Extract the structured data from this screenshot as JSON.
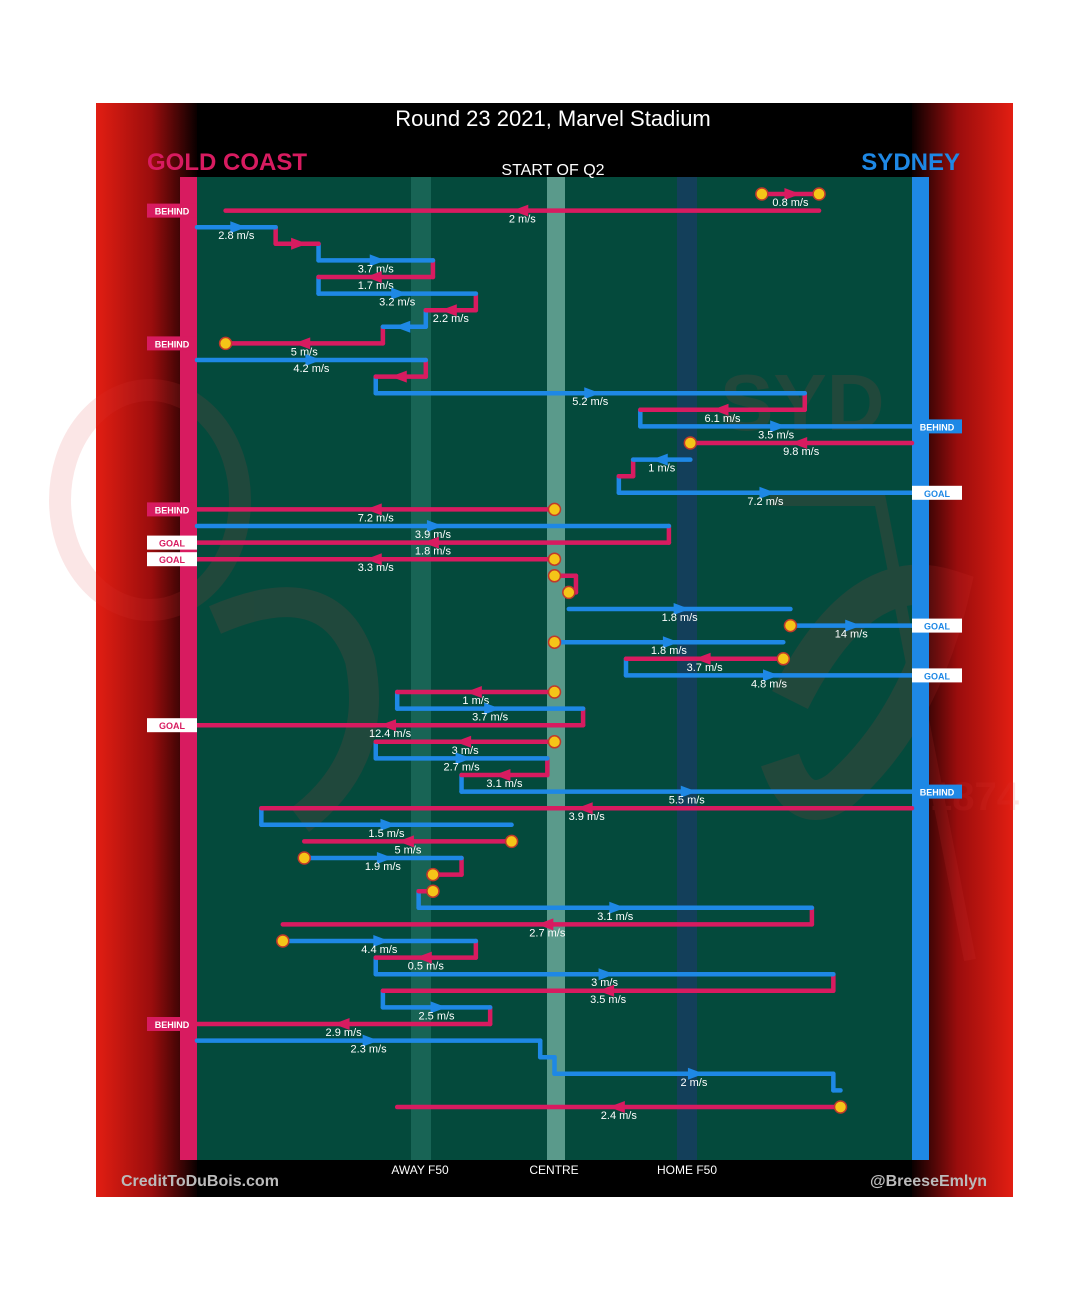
{
  "header": {
    "title": "Round 23 2021, Marvel Stadium",
    "home_team": "GOLD COAST",
    "away_team": "SYDNEY",
    "period": "START OF Q2"
  },
  "footer": {
    "credit_left": "CreditToDuBois.com",
    "credit_right": "@BreeseEmlyn"
  },
  "colors": {
    "gold_coast": "#d81b60",
    "sydney": "#1e88e5",
    "field": "#044a3c",
    "header_bg": "#000000",
    "side_red": "#e01a1a",
    "ball": "#f5c518"
  },
  "axis": {
    "labels": [
      "AWAY F50",
      "CENTRE",
      "HOME F50"
    ],
    "label_positions": [
      0.32,
      0.5,
      0.68
    ]
  },
  "icons": {
    "watermark": "sydney-swans-logo",
    "ball": "ball-marker-icon",
    "arrow": "arrow-head-icon"
  },
  "chart_data": {
    "type": "line",
    "title": "Round 23 2021, Marvel Stadium",
    "subtitle": "START OF Q2",
    "x_range": [
      0,
      1
    ],
    "xlabel": "",
    "ylabel": "",
    "series": [
      {
        "name": "GOLD COAST",
        "note": "possession chains drawn in pink"
      },
      {
        "name": "SYDNEY",
        "note": "possession chains drawn in blue"
      }
    ],
    "chains": [
      {
        "team": "GC",
        "x0": 0.79,
        "x1": 0.87,
        "speed": "0.8 m/s",
        "start": "ball",
        "end": "ball"
      },
      {
        "team": "GC",
        "x0": 0.87,
        "x1": 0.04,
        "speed": "2 m/s",
        "end": "BEHIND"
      },
      {
        "team": "SY",
        "x0": 0.0,
        "x1": 0.11,
        "speed": "2.8 m/s"
      },
      {
        "team": "GC",
        "x0": 0.11,
        "x1": 0.17,
        "speed": ""
      },
      {
        "team": "SY",
        "x0": 0.17,
        "x1": 0.33,
        "speed": "3.7 m/s"
      },
      {
        "team": "GC",
        "x0": 0.33,
        "x1": 0.17,
        "speed": "1.7 m/s"
      },
      {
        "team": "SY",
        "x0": 0.17,
        "x1": 0.39,
        "speed": "3.2 m/s"
      },
      {
        "team": "GC",
        "x0": 0.39,
        "x1": 0.32,
        "speed": "2.2 m/s"
      },
      {
        "team": "SY",
        "x0": 0.32,
        "x1": 0.26,
        "speed": ""
      },
      {
        "team": "GC",
        "x0": 0.26,
        "x1": 0.04,
        "speed": "5 m/s",
        "end": "ball",
        "result": "BEHIND"
      },
      {
        "team": "SY",
        "x0": 0.0,
        "x1": 0.32,
        "speed": "4.2 m/s"
      },
      {
        "team": "GC",
        "x0": 0.32,
        "x1": 0.25,
        "speed": ""
      },
      {
        "team": "SY",
        "x0": 0.25,
        "x1": 0.85,
        "speed": "5.2 m/s"
      },
      {
        "team": "GC",
        "x0": 0.85,
        "x1": 0.62,
        "speed": "6.1 m/s"
      },
      {
        "team": "SY",
        "x0": 0.62,
        "x1": 1.0,
        "speed": "3.5 m/s",
        "end": "BEHIND"
      },
      {
        "team": "GC",
        "x0": 1.0,
        "x1": 0.69,
        "speed": "9.8 m/s",
        "end": "ball"
      },
      {
        "team": "SY",
        "x0": 0.69,
        "x1": 0.61,
        "speed": "1 m/s"
      },
      {
        "team": "GC",
        "x0": 0.61,
        "x1": 0.59,
        "speed": ""
      },
      {
        "team": "SY",
        "x0": 0.59,
        "x1": 1.0,
        "speed": "7.2 m/s",
        "end": "GOAL"
      },
      {
        "team": "GC",
        "x0": 0.5,
        "x1": 0.0,
        "speed": "7.2 m/s",
        "start": "ball",
        "end": "BEHIND"
      },
      {
        "team": "SY",
        "x0": 0.0,
        "x1": 0.66,
        "speed": "3.9 m/s"
      },
      {
        "team": "GC",
        "x0": 0.66,
        "x1": 0.0,
        "speed": "1.8 m/s",
        "end": "GOAL"
      },
      {
        "team": "GC",
        "x0": 0.5,
        "x1": 0.0,
        "speed": "3.3 m/s",
        "start": "ball",
        "end": "GOAL"
      },
      {
        "team": "GC",
        "x0": 0.5,
        "x1": 0.53,
        "speed": "",
        "start": "ball"
      },
      {
        "team": "GC",
        "x0": 0.53,
        "x1": 0.52,
        "speed": "",
        "end": "ball"
      },
      {
        "team": "SY",
        "x0": 0.52,
        "x1": 0.83,
        "speed": "1.8 m/s"
      },
      {
        "team": "SY",
        "x0": 0.83,
        "x1": 1.0,
        "speed": "14 m/s",
        "start": "ball",
        "end": "GOAL"
      },
      {
        "team": "SY",
        "x0": 0.5,
        "x1": 0.82,
        "speed": "1.8 m/s",
        "start": "ball"
      },
      {
        "team": "GC",
        "x0": 0.82,
        "x1": 0.6,
        "speed": "3.7 m/s",
        "start": "ball"
      },
      {
        "team": "SY",
        "x0": 0.6,
        "x1": 1.0,
        "speed": "4.8 m/s",
        "end": "GOAL"
      },
      {
        "team": "GC",
        "x0": 0.5,
        "x1": 0.28,
        "speed": "1 m/s",
        "start": "ball"
      },
      {
        "team": "SY",
        "x0": 0.28,
        "x1": 0.54,
        "speed": "3.7 m/s"
      },
      {
        "team": "GC",
        "x0": 0.54,
        "x1": 0.0,
        "speed": "12.4 m/s",
        "end": "GOAL"
      },
      {
        "team": "GC",
        "x0": 0.5,
        "x1": 0.25,
        "speed": "3 m/s",
        "start": "ball"
      },
      {
        "team": "SY",
        "x0": 0.25,
        "x1": 0.49,
        "speed": "2.7 m/s"
      },
      {
        "team": "GC",
        "x0": 0.49,
        "x1": 0.37,
        "speed": "3.1 m/s"
      },
      {
        "team": "SY",
        "x0": 0.37,
        "x1": 1.0,
        "speed": "5.5 m/s",
        "end": "BEHIND"
      },
      {
        "team": "GC",
        "x0": 1.0,
        "x1": 0.09,
        "speed": "3.9 m/s"
      },
      {
        "team": "SY",
        "x0": 0.09,
        "x1": 0.44,
        "speed": "1.5 m/s"
      },
      {
        "team": "GC",
        "x0": 0.44,
        "x1": 0.15,
        "speed": "5 m/s",
        "start": "ball"
      },
      {
        "team": "SY",
        "x0": 0.15,
        "x1": 0.37,
        "speed": "1.9 m/s",
        "start": "ball"
      },
      {
        "team": "GC",
        "x0": 0.37,
        "x1": 0.33,
        "speed": "",
        "end": "ball"
      },
      {
        "team": "GC",
        "x0": 0.33,
        "x1": 0.31,
        "speed": "",
        "start": "ball"
      },
      {
        "team": "SY",
        "x0": 0.31,
        "x1": 0.86,
        "speed": "3.1 m/s"
      },
      {
        "team": "GC",
        "x0": 0.86,
        "x1": 0.12,
        "speed": "2.7 m/s"
      },
      {
        "team": "SY",
        "x0": 0.12,
        "x1": 0.39,
        "speed": "4.4 m/s",
        "start": "ball"
      },
      {
        "team": "GC",
        "x0": 0.39,
        "x1": 0.25,
        "speed": "0.5 m/s"
      },
      {
        "team": "SY",
        "x0": 0.25,
        "x1": 0.89,
        "speed": "3 m/s"
      },
      {
        "team": "GC",
        "x0": 0.89,
        "x1": 0.26,
        "speed": "3.5 m/s"
      },
      {
        "team": "SY",
        "x0": 0.26,
        "x1": 0.41,
        "speed": "2.5 m/s"
      },
      {
        "team": "GC",
        "x0": 0.41,
        "x1": 0.0,
        "speed": "2.9 m/s",
        "end": "BEHIND"
      },
      {
        "team": "SY",
        "x0": 0.0,
        "x1": 0.48,
        "speed": "2.3 m/s"
      },
      {
        "team": "SY",
        "x0": 0.48,
        "x1": 0.5,
        "speed": ""
      },
      {
        "team": "SY",
        "x0": 0.5,
        "x1": 0.89,
        "speed": "2 m/s"
      },
      {
        "team": "SY",
        "x0": 0.89,
        "x1": 0.9,
        "speed": ""
      },
      {
        "team": "GC",
        "x0": 0.9,
        "x1": 0.28,
        "speed": "2.4 m/s",
        "start": "ball"
      }
    ]
  }
}
